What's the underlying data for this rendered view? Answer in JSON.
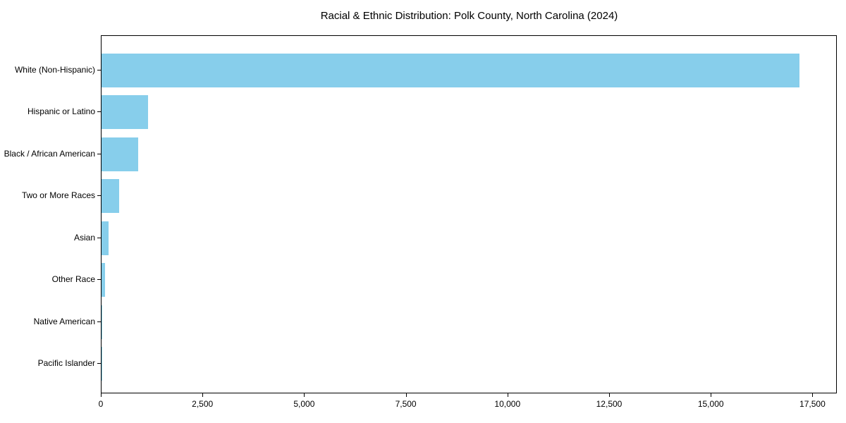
{
  "chart_data": {
    "type": "bar",
    "orientation": "horizontal",
    "title": "Racial & Ethnic Distribution: Polk County, North Carolina (2024)",
    "categories": [
      "White (Non-Hispanic)",
      "Hispanic or Latino",
      "Black / African American",
      "Two or More Races",
      "Asian",
      "Other Race",
      "Native American",
      "Pacific Islander"
    ],
    "values": [
      17200,
      1150,
      900,
      440,
      170,
      80,
      25,
      5
    ],
    "xlabel": "",
    "ylabel": "",
    "xlim": [
      0,
      18100
    ],
    "x_ticks": [
      0,
      2500,
      5000,
      7500,
      10000,
      12500,
      15000,
      17500
    ],
    "x_tick_labels": [
      "0",
      "2,500",
      "5,000",
      "7,500",
      "10,000",
      "12,500",
      "15,000",
      "17,500"
    ],
    "bar_color": "#87CEEB",
    "axis_color": "#000000",
    "text_color": "#000000",
    "background_color": "#ffffff",
    "grid": false,
    "legend": null
  }
}
